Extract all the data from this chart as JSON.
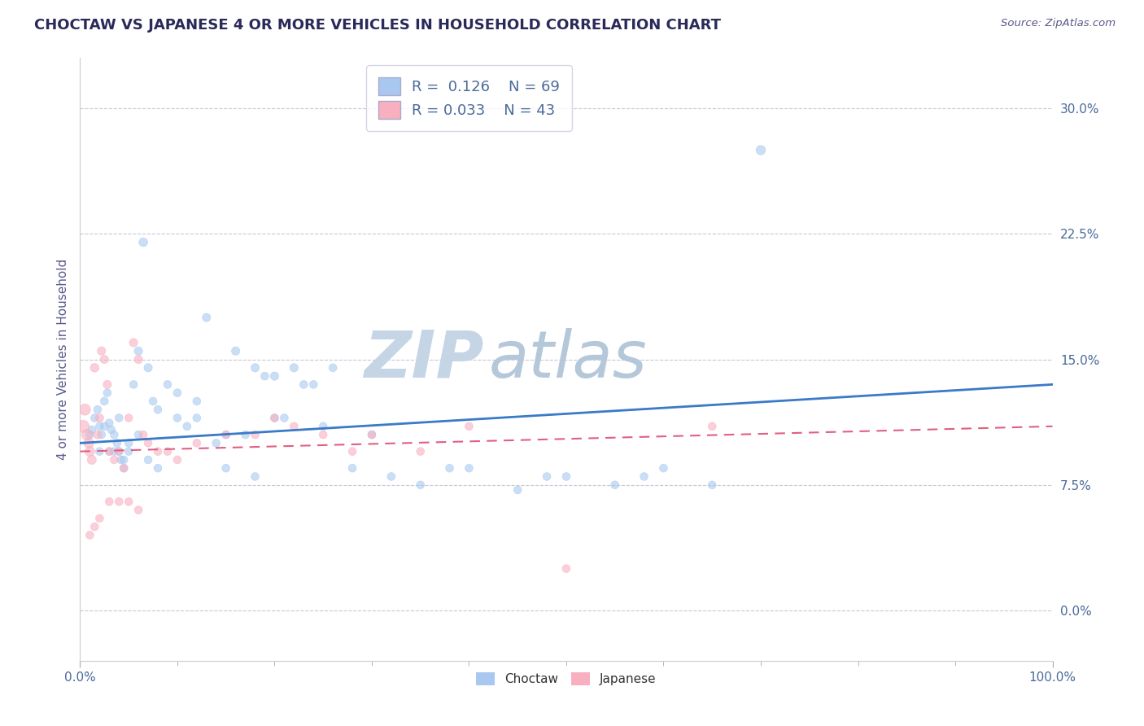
{
  "title": "CHOCTAW VS JAPANESE 4 OR MORE VEHICLES IN HOUSEHOLD CORRELATION CHART",
  "source_text": "Source: ZipAtlas.com",
  "ylabel": "4 or more Vehicles in Household",
  "xlim": [
    0,
    100
  ],
  "ylim": [
    -3,
    33
  ],
  "yticks": [
    0,
    7.5,
    15,
    22.5,
    30
  ],
  "ytick_labels": [
    "0.0%",
    "7.5%",
    "15.0%",
    "22.5%",
    "30.0%"
  ],
  "xtick_labels": [
    "0.0%",
    "100.0%"
  ],
  "legend_r_choctaw": "0.126",
  "legend_n_choctaw": "69",
  "legend_r_japanese": "0.033",
  "legend_n_japanese": "43",
  "legend_label_choctaw": "Choctaw",
  "legend_label_japanese": "Japanese",
  "choctaw_color": "#a8c8f0",
  "japanese_color": "#f8b0c0",
  "choctaw_line_color": "#3a7ac8",
  "japanese_line_color": "#e06080",
  "watermark_zip": "ZIP",
  "watermark_atlas": "atlas",
  "watermark_color_zip": "#c8d8e8",
  "watermark_color_atlas": "#b8c8d8",
  "background_color": "#ffffff",
  "grid_color": "#c8c8d8",
  "title_color": "#2a2a5a",
  "axis_label_color": "#5a5a8a",
  "tick_color": "#4a6a9a",
  "choctaw_x": [
    1.0,
    1.2,
    1.5,
    1.8,
    2.0,
    2.2,
    2.5,
    2.8,
    3.0,
    3.2,
    3.5,
    3.8,
    4.0,
    4.2,
    4.5,
    5.0,
    5.5,
    6.0,
    6.5,
    7.0,
    7.5,
    8.0,
    9.0,
    10.0,
    11.0,
    12.0,
    13.0,
    14.0,
    15.0,
    16.0,
    17.0,
    18.0,
    19.0,
    20.0,
    21.0,
    22.0,
    23.0,
    24.0,
    25.0,
    26.0,
    28.0,
    30.0,
    32.0,
    35.0,
    38.0,
    40.0,
    45.0,
    48.0,
    50.0,
    55.0,
    58.0,
    60.0,
    65.0,
    70.0,
    2.0,
    2.5,
    3.0,
    3.5,
    4.0,
    4.5,
    5.0,
    6.0,
    7.0,
    8.0,
    10.0,
    12.0,
    15.0,
    18.0,
    20.0
  ],
  "choctaw_y": [
    10.5,
    10.8,
    11.5,
    12.0,
    11.0,
    10.5,
    12.5,
    13.0,
    11.2,
    10.8,
    10.5,
    10.0,
    9.5,
    9.0,
    8.5,
    10.0,
    13.5,
    15.5,
    22.0,
    14.5,
    12.5,
    12.0,
    13.5,
    13.0,
    11.0,
    11.5,
    17.5,
    10.0,
    10.5,
    15.5,
    10.5,
    14.5,
    14.0,
    14.0,
    11.5,
    14.5,
    13.5,
    13.5,
    11.0,
    14.5,
    8.5,
    10.5,
    8.0,
    7.5,
    8.5,
    8.5,
    7.2,
    8.0,
    8.0,
    7.5,
    8.0,
    8.5,
    7.5,
    27.5,
    9.5,
    11.0,
    9.5,
    9.5,
    11.5,
    9.0,
    9.5,
    10.5,
    9.0,
    8.5,
    11.5,
    12.5,
    8.5,
    8.0,
    11.5
  ],
  "choctaw_sizes": [
    50,
    50,
    50,
    50,
    50,
    50,
    50,
    50,
    50,
    50,
    50,
    50,
    50,
    50,
    50,
    50,
    50,
    55,
    60,
    55,
    50,
    50,
    50,
    50,
    50,
    50,
    55,
    50,
    50,
    55,
    50,
    55,
    50,
    55,
    50,
    55,
    50,
    50,
    50,
    50,
    50,
    50,
    50,
    50,
    50,
    50,
    50,
    50,
    50,
    50,
    50,
    50,
    50,
    70,
    50,
    50,
    50,
    50,
    50,
    50,
    50,
    50,
    50,
    50,
    50,
    50,
    50,
    50,
    50
  ],
  "japanese_x": [
    0.3,
    0.5,
    0.7,
    0.9,
    1.0,
    1.2,
    1.5,
    1.8,
    2.0,
    2.2,
    2.5,
    2.8,
    3.0,
    3.5,
    4.0,
    4.5,
    5.0,
    5.5,
    6.0,
    6.5,
    7.0,
    8.0,
    9.0,
    10.0,
    12.0,
    15.0,
    18.0,
    20.0,
    22.0,
    25.0,
    28.0,
    30.0,
    35.0,
    40.0,
    50.0,
    65.0,
    1.0,
    1.5,
    2.0,
    3.0,
    4.0,
    5.0,
    6.0
  ],
  "japanese_y": [
    11.0,
    12.0,
    10.5,
    10.0,
    9.5,
    9.0,
    14.5,
    10.5,
    11.5,
    15.5,
    15.0,
    13.5,
    9.5,
    9.0,
    9.5,
    8.5,
    11.5,
    16.0,
    15.0,
    10.5,
    10.0,
    9.5,
    9.5,
    9.0,
    10.0,
    10.5,
    10.5,
    11.5,
    11.0,
    10.5,
    9.5,
    10.5,
    9.5,
    11.0,
    2.5,
    11.0,
    4.5,
    5.0,
    5.5,
    6.5,
    6.5,
    6.5,
    6.0
  ],
  "japanese_sizes": [
    120,
    100,
    90,
    80,
    75,
    65,
    60,
    55,
    55,
    55,
    55,
    55,
    50,
    50,
    50,
    50,
    50,
    55,
    55,
    50,
    50,
    50,
    50,
    50,
    50,
    50,
    50,
    50,
    50,
    50,
    50,
    50,
    50,
    50,
    50,
    50,
    50,
    50,
    50,
    50,
    50,
    50,
    50
  ]
}
